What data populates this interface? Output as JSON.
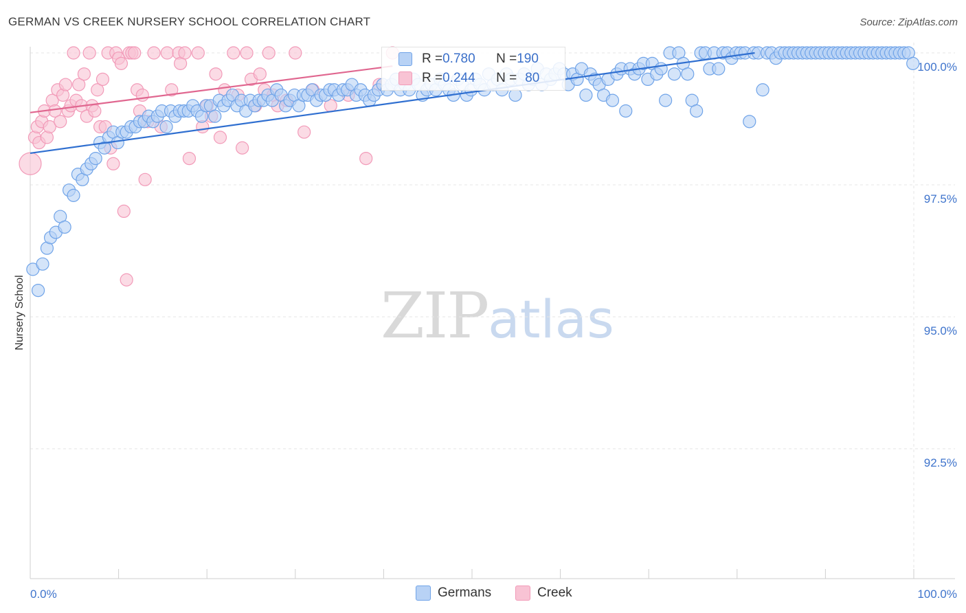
{
  "title": "GERMAN VS CREEK NURSERY SCHOOL CORRELATION CHART",
  "source": "Source: ZipAtlas.com",
  "watermark": {
    "zip": "ZIP",
    "atlas": "atlas"
  },
  "legend_box": {
    "rows": [
      {
        "r_label": "R = ",
        "r_value": "0.780",
        "n_label": "N = ",
        "n_value": "190",
        "color": "#6fa3e8"
      },
      {
        "r_label": "R = ",
        "r_value": "0.244",
        "n_label": "N = ",
        "n_value": "80",
        "color": "#f29ab8"
      }
    ]
  },
  "legend": {
    "germans": "Germans",
    "creek": "Creek"
  },
  "colors": {
    "german_fill": "#b8d2f5",
    "german_stroke": "#6fa3e8",
    "german_line": "#2f6fd0",
    "creek_fill": "#f8c3d4",
    "creek_stroke": "#f29ab8",
    "creek_line": "#e0668f",
    "axis_text": "#3f74cc",
    "grid": "#e6e6e6"
  },
  "chart_data": {
    "type": "scatter",
    "title": "GERMAN VS CREEK NURSERY SCHOOL CORRELATION CHART",
    "xlabel": "",
    "ylabel": "Nursery School",
    "xlim": [
      0,
      100
    ],
    "ylim": [
      90.5,
      100.4
    ],
    "x_tick_labels": [
      "0.0%",
      "100.0%"
    ],
    "y_ticks": [
      92.5,
      95.0,
      97.5,
      100.0
    ],
    "y_tick_labels": [
      "92.5%",
      "95.0%",
      "97.5%",
      "100.0%"
    ],
    "series": [
      {
        "name": "Germans",
        "r": 0.78,
        "n": 190,
        "trend": {
          "x": [
            0,
            82
          ],
          "y": [
            98.1,
            100.0
          ]
        },
        "points": [
          [
            0.3,
            95.9
          ],
          [
            0.9,
            95.5
          ],
          [
            1.4,
            96.0
          ],
          [
            1.9,
            96.3
          ],
          [
            2.3,
            96.5
          ],
          [
            2.9,
            96.6
          ],
          [
            3.4,
            96.9
          ],
          [
            3.9,
            96.7
          ],
          [
            4.4,
            97.4
          ],
          [
            4.9,
            97.3
          ],
          [
            5.4,
            97.7
          ],
          [
            5.9,
            97.6
          ],
          [
            6.4,
            97.8
          ],
          [
            6.9,
            97.9
          ],
          [
            7.4,
            98.0
          ],
          [
            7.9,
            98.3
          ],
          [
            8.4,
            98.2
          ],
          [
            8.9,
            98.4
          ],
          [
            9.4,
            98.5
          ],
          [
            9.9,
            98.3
          ],
          [
            10.4,
            98.5
          ],
          [
            10.9,
            98.5
          ],
          [
            11.4,
            98.6
          ],
          [
            11.9,
            98.6
          ],
          [
            12.4,
            98.7
          ],
          [
            12.9,
            98.7
          ],
          [
            13.4,
            98.8
          ],
          [
            13.9,
            98.7
          ],
          [
            14.4,
            98.8
          ],
          [
            14.9,
            98.9
          ],
          [
            15.4,
            98.6
          ],
          [
            15.9,
            98.9
          ],
          [
            16.4,
            98.8
          ],
          [
            16.9,
            98.9
          ],
          [
            17.4,
            98.9
          ],
          [
            17.9,
            98.9
          ],
          [
            18.4,
            99.0
          ],
          [
            18.9,
            98.9
          ],
          [
            19.4,
            98.8
          ],
          [
            19.9,
            99.0
          ],
          [
            20.4,
            99.0
          ],
          [
            20.9,
            98.8
          ],
          [
            21.4,
            99.1
          ],
          [
            21.9,
            99.0
          ],
          [
            22.4,
            99.1
          ],
          [
            22.9,
            99.2
          ],
          [
            23.4,
            99.0
          ],
          [
            23.9,
            99.1
          ],
          [
            24.4,
            98.9
          ],
          [
            24.9,
            99.1
          ],
          [
            25.4,
            99.0
          ],
          [
            25.9,
            99.1
          ],
          [
            26.4,
            99.1
          ],
          [
            26.9,
            99.2
          ],
          [
            27.4,
            99.1
          ],
          [
            27.9,
            99.3
          ],
          [
            28.4,
            99.2
          ],
          [
            28.9,
            99.0
          ],
          [
            29.4,
            99.1
          ],
          [
            29.9,
            99.2
          ],
          [
            30.4,
            99.0
          ],
          [
            30.9,
            99.2
          ],
          [
            31.4,
            99.2
          ],
          [
            31.9,
            99.3
          ],
          [
            32.4,
            99.1
          ],
          [
            32.9,
            99.2
          ],
          [
            33.4,
            99.2
          ],
          [
            33.9,
            99.3
          ],
          [
            34.4,
            99.3
          ],
          [
            34.9,
            99.2
          ],
          [
            35.4,
            99.3
          ],
          [
            35.9,
            99.3
          ],
          [
            36.4,
            99.4
          ],
          [
            36.9,
            99.2
          ],
          [
            37.4,
            99.3
          ],
          [
            37.9,
            99.2
          ],
          [
            38.4,
            99.1
          ],
          [
            38.9,
            99.2
          ],
          [
            39.4,
            99.3
          ],
          [
            39.9,
            99.4
          ],
          [
            40.4,
            99.3
          ],
          [
            40.9,
            99.4
          ],
          [
            41.4,
            99.5
          ],
          [
            41.9,
            99.3
          ],
          [
            42.4,
            99.4
          ],
          [
            42.9,
            99.3
          ],
          [
            43.4,
            99.5
          ],
          [
            43.9,
            99.4
          ],
          [
            44.4,
            99.2
          ],
          [
            44.9,
            99.3
          ],
          [
            45.4,
            99.4
          ],
          [
            45.9,
            99.3
          ],
          [
            46.4,
            99.5
          ],
          [
            46.9,
            99.4
          ],
          [
            47.4,
            99.3
          ],
          [
            47.9,
            99.2
          ],
          [
            48.4,
            99.5
          ],
          [
            48.9,
            99.4
          ],
          [
            49.4,
            99.2
          ],
          [
            49.9,
            99.3
          ],
          [
            50.4,
            99.5
          ],
          [
            50.9,
            99.4
          ],
          [
            51.4,
            99.3
          ],
          [
            51.9,
            99.6
          ],
          [
            52.4,
            99.4
          ],
          [
            52.9,
            99.5
          ],
          [
            53.4,
            99.3
          ],
          [
            53.9,
            99.6
          ],
          [
            54.4,
            99.5
          ],
          [
            54.9,
            99.2
          ],
          [
            55.4,
            99.5
          ],
          [
            55.9,
            99.6
          ],
          [
            56.4,
            99.4
          ],
          [
            56.9,
            99.5
          ],
          [
            57.4,
            99.7
          ],
          [
            57.9,
            99.4
          ],
          [
            58.4,
            99.6
          ],
          [
            58.9,
            99.5
          ],
          [
            59.4,
            99.6
          ],
          [
            59.9,
            99.7
          ],
          [
            60.4,
            99.6
          ],
          [
            60.9,
            99.4
          ],
          [
            61.4,
            99.6
          ],
          [
            61.9,
            99.5
          ],
          [
            62.4,
            99.7
          ],
          [
            62.9,
            99.2
          ],
          [
            63.4,
            99.6
          ],
          [
            63.9,
            99.5
          ],
          [
            64.4,
            99.4
          ],
          [
            64.9,
            99.2
          ],
          [
            65.4,
            99.5
          ],
          [
            65.9,
            99.1
          ],
          [
            66.4,
            99.6
          ],
          [
            66.9,
            99.7
          ],
          [
            67.4,
            98.9
          ],
          [
            67.9,
            99.7
          ],
          [
            68.4,
            99.6
          ],
          [
            68.9,
            99.7
          ],
          [
            69.4,
            99.8
          ],
          [
            69.9,
            99.5
          ],
          [
            70.4,
            99.8
          ],
          [
            70.9,
            99.6
          ],
          [
            71.4,
            99.7
          ],
          [
            71.9,
            99.1
          ],
          [
            72.4,
            100.0
          ],
          [
            72.9,
            99.6
          ],
          [
            73.4,
            100.0
          ],
          [
            73.9,
            99.8
          ],
          [
            74.4,
            99.6
          ],
          [
            74.9,
            99.1
          ],
          [
            75.4,
            98.9
          ],
          [
            75.9,
            100.0
          ],
          [
            76.4,
            100.0
          ],
          [
            76.9,
            99.7
          ],
          [
            77.4,
            100.0
          ],
          [
            77.9,
            99.7
          ],
          [
            78.4,
            100.0
          ],
          [
            78.9,
            100.0
          ],
          [
            79.4,
            99.9
          ],
          [
            79.9,
            100.0
          ],
          [
            80.4,
            100.0
          ],
          [
            80.9,
            100.0
          ],
          [
            81.4,
            98.7
          ],
          [
            81.9,
            100.0
          ],
          [
            82.4,
            100.0
          ],
          [
            82.9,
            99.3
          ],
          [
            83.4,
            100.0
          ],
          [
            83.9,
            100.0
          ],
          [
            84.4,
            99.9
          ],
          [
            84.9,
            100.0
          ],
          [
            85.4,
            100.0
          ],
          [
            85.9,
            100.0
          ],
          [
            86.4,
            100.0
          ],
          [
            86.9,
            100.0
          ],
          [
            87.4,
            100.0
          ],
          [
            87.9,
            100.0
          ],
          [
            88.4,
            100.0
          ],
          [
            88.9,
            100.0
          ],
          [
            89.4,
            100.0
          ],
          [
            89.9,
            100.0
          ],
          [
            90.4,
            100.0
          ],
          [
            90.9,
            100.0
          ],
          [
            91.4,
            100.0
          ],
          [
            91.9,
            100.0
          ],
          [
            92.4,
            100.0
          ],
          [
            92.9,
            100.0
          ],
          [
            93.4,
            100.0
          ],
          [
            93.9,
            100.0
          ],
          [
            94.4,
            100.0
          ],
          [
            94.9,
            100.0
          ],
          [
            95.4,
            100.0
          ],
          [
            95.9,
            100.0
          ],
          [
            96.4,
            100.0
          ],
          [
            96.9,
            100.0
          ],
          [
            97.4,
            100.0
          ],
          [
            97.9,
            100.0
          ],
          [
            98.4,
            100.0
          ],
          [
            98.9,
            100.0
          ],
          [
            99.4,
            100.0
          ],
          [
            99.9,
            99.8
          ]
        ]
      },
      {
        "name": "Creek",
        "r": 0.244,
        "n": 80,
        "trend": {
          "x": [
            0,
            41
          ],
          "y": [
            98.87,
            99.75
          ]
        },
        "points": [
          [
            0.0,
            97.9
          ],
          [
            0.5,
            98.4
          ],
          [
            0.8,
            98.6
          ],
          [
            1.0,
            98.3
          ],
          [
            1.3,
            98.7
          ],
          [
            1.6,
            98.9
          ],
          [
            1.9,
            98.4
          ],
          [
            2.2,
            98.6
          ],
          [
            2.5,
            99.1
          ],
          [
            2.8,
            98.9
          ],
          [
            3.1,
            99.3
          ],
          [
            3.4,
            98.7
          ],
          [
            3.7,
            99.2
          ],
          [
            4.0,
            99.4
          ],
          [
            4.3,
            98.9
          ],
          [
            4.6,
            99.0
          ],
          [
            4.9,
            100.0
          ],
          [
            5.2,
            99.1
          ],
          [
            5.5,
            99.4
          ],
          [
            5.8,
            99.0
          ],
          [
            6.1,
            99.6
          ],
          [
            6.4,
            98.8
          ],
          [
            6.7,
            100.0
          ],
          [
            7.0,
            99.0
          ],
          [
            7.3,
            98.9
          ],
          [
            7.6,
            99.3
          ],
          [
            7.9,
            98.6
          ],
          [
            8.2,
            99.5
          ],
          [
            8.5,
            98.6
          ],
          [
            8.8,
            100.0
          ],
          [
            9.1,
            98.2
          ],
          [
            9.4,
            97.9
          ],
          [
            9.7,
            100.0
          ],
          [
            10.0,
            99.9
          ],
          [
            10.3,
            99.8
          ],
          [
            10.6,
            97.0
          ],
          [
            10.9,
            95.7
          ],
          [
            11.2,
            100.0
          ],
          [
            11.5,
            100.0
          ],
          [
            11.8,
            100.0
          ],
          [
            12.1,
            99.3
          ],
          [
            12.4,
            98.9
          ],
          [
            12.7,
            99.2
          ],
          [
            13.0,
            97.6
          ],
          [
            13.3,
            98.7
          ],
          [
            14.0,
            100.0
          ],
          [
            14.8,
            98.6
          ],
          [
            15.5,
            100.0
          ],
          [
            16.0,
            99.3
          ],
          [
            16.8,
            100.0
          ],
          [
            17.0,
            99.8
          ],
          [
            17.5,
            100.0
          ],
          [
            18.0,
            98.0
          ],
          [
            19.0,
            100.0
          ],
          [
            19.5,
            98.6
          ],
          [
            20.0,
            99.0
          ],
          [
            20.5,
            98.8
          ],
          [
            21.0,
            99.6
          ],
          [
            21.5,
            98.4
          ],
          [
            22.0,
            99.3
          ],
          [
            23.0,
            100.0
          ],
          [
            23.5,
            99.2
          ],
          [
            24.0,
            98.2
          ],
          [
            24.5,
            100.0
          ],
          [
            25.0,
            99.5
          ],
          [
            25.5,
            99.0
          ],
          [
            26.0,
            99.6
          ],
          [
            26.5,
            99.3
          ],
          [
            27.0,
            100.0
          ],
          [
            27.5,
            99.2
          ],
          [
            28.0,
            99.0
          ],
          [
            29.0,
            99.1
          ],
          [
            30.0,
            100.0
          ],
          [
            31.0,
            98.5
          ],
          [
            32.0,
            99.3
          ],
          [
            34.0,
            99.0
          ],
          [
            36.0,
            99.2
          ],
          [
            38.0,
            98.0
          ],
          [
            39.5,
            99.4
          ],
          [
            41.0,
            100.0
          ]
        ]
      }
    ]
  }
}
